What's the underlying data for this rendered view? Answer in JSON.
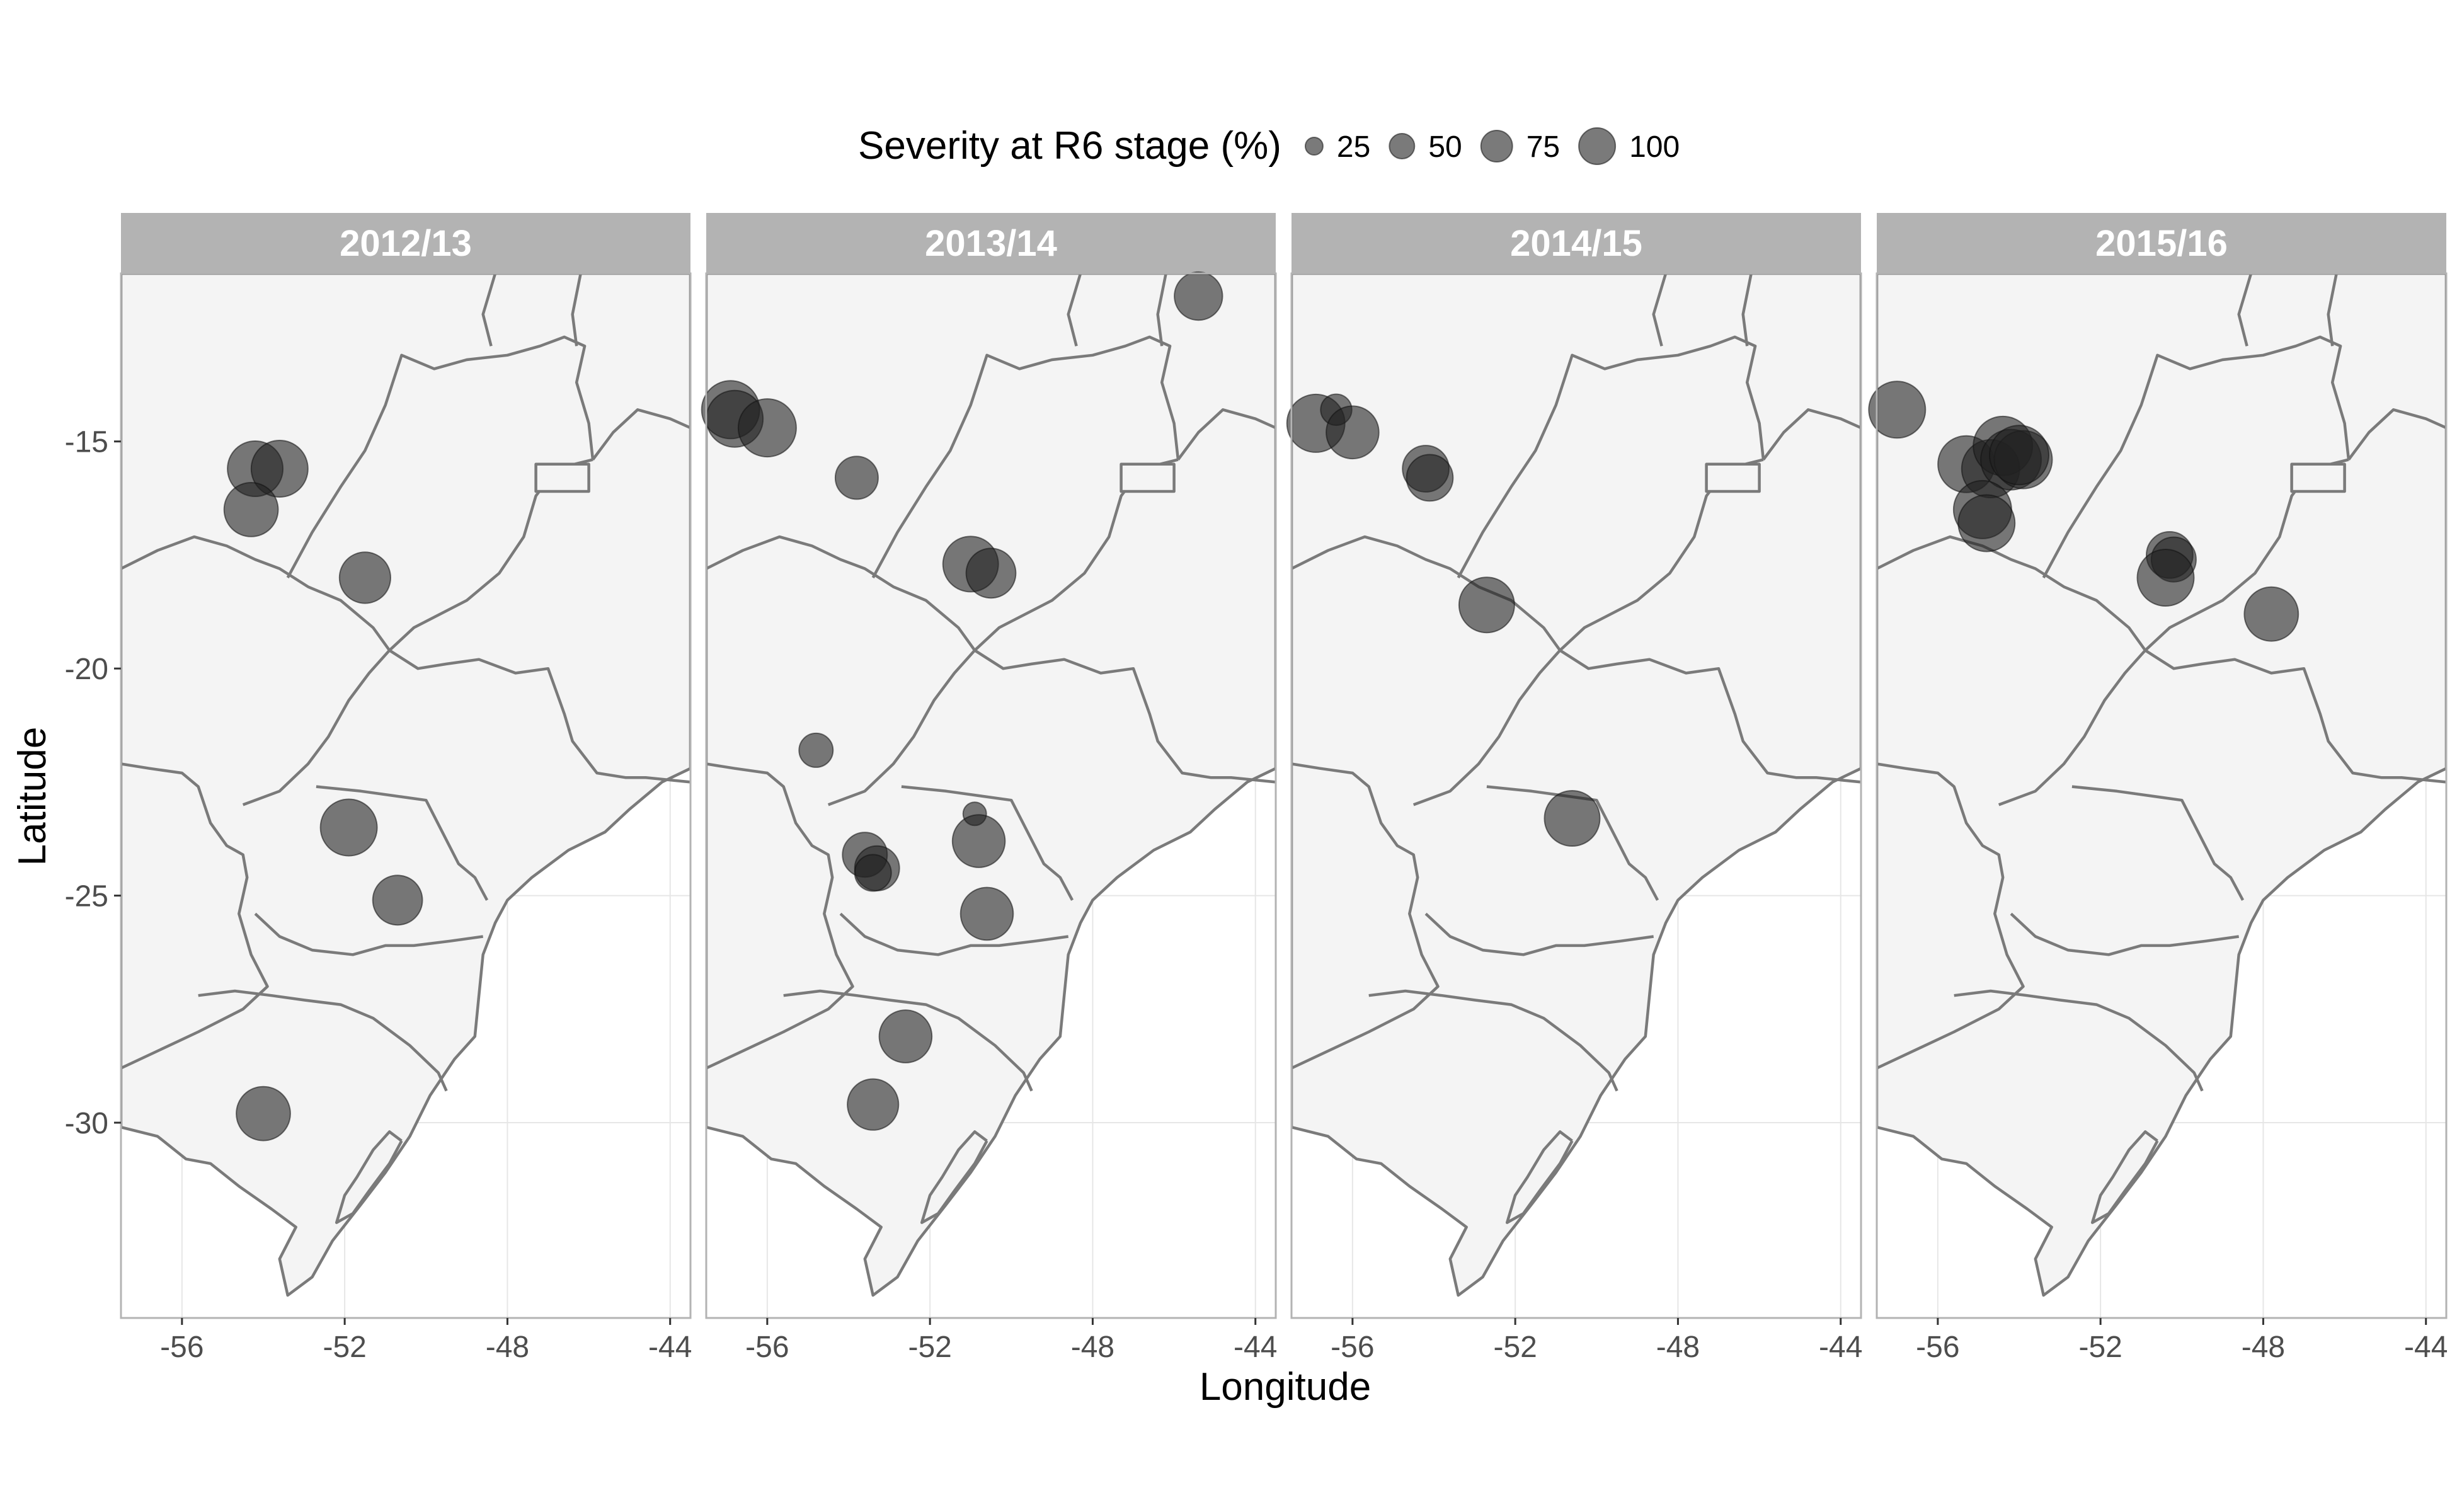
{
  "chart_data": {
    "type": "scatter",
    "title": "",
    "xlabel": "Longitude",
    "ylabel": "Latitude",
    "xlim": [
      -57.5,
      -43.5
    ],
    "ylim": [
      -34.3,
      -11.3
    ],
    "x_ticks": [
      -56,
      -52,
      -48,
      -44
    ],
    "x_tick_labels": [
      "-56",
      "-52",
      "-48",
      "-44"
    ],
    "y_ticks": [
      -15,
      -20,
      -25,
      -30
    ],
    "y_tick_labels": [
      "-15",
      "-20",
      "-25",
      "-30"
    ],
    "grid": true,
    "size_legend": {
      "title": "Severity at R6 stage (%)",
      "position": "top",
      "values": [
        25,
        50,
        75,
        100
      ],
      "labels": [
        "25",
        "50",
        "75",
        "100"
      ]
    },
    "point_color": "#333333",
    "panels": [
      {
        "label": "2012/13",
        "points": [
          {
            "lon": -54.2,
            "lat": -15.6,
            "severity": 80
          },
          {
            "lon": -53.6,
            "lat": -15.6,
            "severity": 85
          },
          {
            "lon": -54.3,
            "lat": -16.5,
            "severity": 75
          },
          {
            "lon": -51.5,
            "lat": -18.0,
            "severity": 65
          },
          {
            "lon": -51.9,
            "lat": -23.5,
            "severity": 85
          },
          {
            "lon": -50.7,
            "lat": -25.1,
            "severity": 60
          },
          {
            "lon": -54.0,
            "lat": -29.8,
            "severity": 75
          }
        ]
      },
      {
        "label": "2013/14",
        "points": [
          {
            "lon": -56.9,
            "lat": -14.3,
            "severity": 90
          },
          {
            "lon": -56.8,
            "lat": -14.5,
            "severity": 85
          },
          {
            "lon": -56.0,
            "lat": -14.7,
            "severity": 90
          },
          {
            "lon": -53.8,
            "lat": -15.8,
            "severity": 40
          },
          {
            "lon": -51.0,
            "lat": -17.7,
            "severity": 80
          },
          {
            "lon": -50.5,
            "lat": -17.9,
            "severity": 60
          },
          {
            "lon": -45.4,
            "lat": -11.8,
            "severity": 55
          },
          {
            "lon": -54.8,
            "lat": -21.8,
            "severity": 20
          },
          {
            "lon": -53.6,
            "lat": -24.1,
            "severity": 45
          },
          {
            "lon": -53.3,
            "lat": -24.4,
            "severity": 45
          },
          {
            "lon": -53.4,
            "lat": -24.5,
            "severity": 25
          },
          {
            "lon": -50.9,
            "lat": -23.2,
            "severity": 5
          },
          {
            "lon": -50.8,
            "lat": -23.8,
            "severity": 70
          },
          {
            "lon": -50.6,
            "lat": -25.4,
            "severity": 70
          },
          {
            "lon": -52.6,
            "lat": -28.1,
            "severity": 70
          },
          {
            "lon": -53.4,
            "lat": -29.6,
            "severity": 65
          }
        ]
      },
      {
        "label": "2014/15",
        "points": [
          {
            "lon": -56.9,
            "lat": -14.6,
            "severity": 90
          },
          {
            "lon": -56.4,
            "lat": -14.3,
            "severity": 15
          },
          {
            "lon": -56.0,
            "lat": -14.8,
            "severity": 70
          },
          {
            "lon": -54.2,
            "lat": -15.6,
            "severity": 50
          },
          {
            "lon": -54.1,
            "lat": -15.8,
            "severity": 50
          },
          {
            "lon": -52.7,
            "lat": -18.6,
            "severity": 80
          },
          {
            "lon": -50.6,
            "lat": -23.3,
            "severity": 80
          }
        ]
      },
      {
        "label": "2015/16",
        "points": [
          {
            "lon": -57.0,
            "lat": -14.3,
            "severity": 85
          },
          {
            "lon": -55.3,
            "lat": -15.5,
            "severity": 85
          },
          {
            "lon": -54.7,
            "lat": -15.6,
            "severity": 90
          },
          {
            "lon": -54.4,
            "lat": -15.1,
            "severity": 95
          },
          {
            "lon": -54.2,
            "lat": -15.4,
            "severity": 100
          },
          {
            "lon": -53.9,
            "lat": -15.4,
            "severity": 90
          },
          {
            "lon": -54.0,
            "lat": -15.3,
            "severity": 95
          },
          {
            "lon": -54.9,
            "lat": -16.5,
            "severity": 90
          },
          {
            "lon": -54.8,
            "lat": -16.8,
            "severity": 85
          },
          {
            "lon": -50.3,
            "lat": -17.5,
            "severity": 50
          },
          {
            "lon": -50.2,
            "lat": -17.6,
            "severity": 45
          },
          {
            "lon": -50.4,
            "lat": -18.0,
            "severity": 85
          },
          {
            "lon": -47.8,
            "lat": -18.8,
            "severity": 75
          }
        ]
      }
    ]
  }
}
